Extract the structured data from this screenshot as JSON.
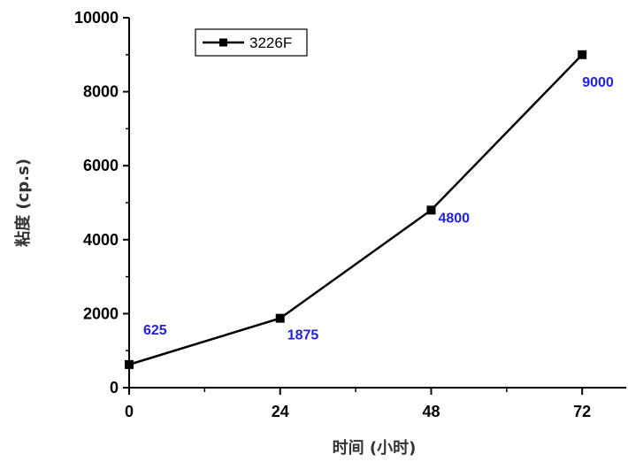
{
  "chart_data": {
    "type": "line",
    "x": [
      0,
      24,
      48,
      72
    ],
    "series": [
      {
        "name": "3226F",
        "values": [
          625,
          1875,
          4800,
          9000
        ],
        "color": "#000000",
        "marker": "square"
      }
    ],
    "data_labels": [
      "625",
      "1875",
      "4800",
      "9000"
    ],
    "data_label_color": "#2222dd",
    "xlabel": "时间 (小时)",
    "ylabel": "粘度 (cp.s)",
    "xlim": [
      0,
      79
    ],
    "ylim": [
      0,
      10000
    ],
    "x_ticks": [
      0,
      24,
      48,
      72
    ],
    "y_ticks": [
      0,
      2000,
      4000,
      6000,
      8000,
      10000
    ],
    "x_tick_labels": [
      "0",
      "24",
      "48",
      "72"
    ],
    "y_tick_labels": [
      "0",
      "2000",
      "4000",
      "6000",
      "8000",
      "10000"
    ],
    "grid": false,
    "legend_position": "top-left"
  }
}
